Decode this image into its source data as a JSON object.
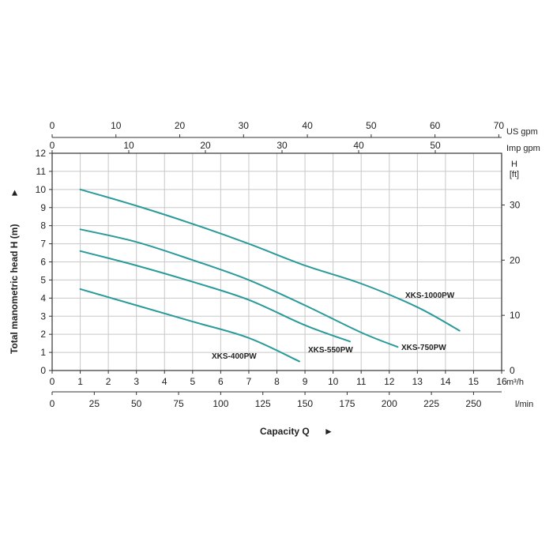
{
  "chart_data": {
    "type": "line",
    "title": "",
    "xlabel": "Capacity Q",
    "xlabel_arrow": "►",
    "ylabel": "Total manometric head H (m)",
    "ylabel_arrow": "►",
    "x_unit": "m³/h",
    "xlim": [
      0,
      16
    ],
    "x_ticks": [
      0,
      1,
      2,
      3,
      4,
      5,
      6,
      7,
      8,
      9,
      10,
      11,
      12,
      13,
      14,
      15,
      16
    ],
    "ylim": [
      0,
      12
    ],
    "y_ticks": [
      0,
      1,
      2,
      3,
      4,
      5,
      6,
      7,
      8,
      9,
      10,
      11,
      12
    ],
    "grid": true,
    "legend": "none",
    "secondary_axes": {
      "lmin": {
        "unit": "l/min",
        "ticks": [
          0,
          25,
          50,
          75,
          100,
          125,
          150,
          175,
          200,
          225,
          250
        ]
      },
      "us_gpm": {
        "unit": "US gpm",
        "ticks": [
          0,
          10,
          20,
          30,
          40,
          50,
          60,
          70
        ]
      },
      "imp_gpm": {
        "unit": "Imp gpm",
        "ticks": [
          0,
          10,
          20,
          30,
          40,
          50
        ]
      },
      "feet": {
        "unit": "H",
        "unit2": "[ft]",
        "ticks": [
          0,
          10,
          20,
          30
        ]
      }
    },
    "curve_color": "#2a9a9a",
    "series": [
      {
        "name": "XKS-1000PW",
        "x": [
          1,
          3,
          5,
          7,
          9,
          11,
          13,
          14.5
        ],
        "y": [
          10.0,
          9.1,
          8.1,
          7.0,
          5.8,
          4.8,
          3.5,
          2.2
        ]
      },
      {
        "name": "XKS-750PW",
        "x": [
          1,
          3,
          5,
          7,
          9,
          11,
          12.3
        ],
        "y": [
          7.8,
          7.1,
          6.1,
          5.0,
          3.6,
          2.1,
          1.3
        ]
      },
      {
        "name": "XKS-550PW",
        "x": [
          1,
          3,
          5,
          7,
          9,
          10.6
        ],
        "y": [
          6.6,
          5.8,
          4.9,
          3.9,
          2.5,
          1.6
        ]
      },
      {
        "name": "XKS-400PW",
        "x": [
          1,
          3,
          5,
          7,
          8.8
        ],
        "y": [
          4.5,
          3.6,
          2.7,
          1.8,
          0.5
        ]
      }
    ]
  }
}
